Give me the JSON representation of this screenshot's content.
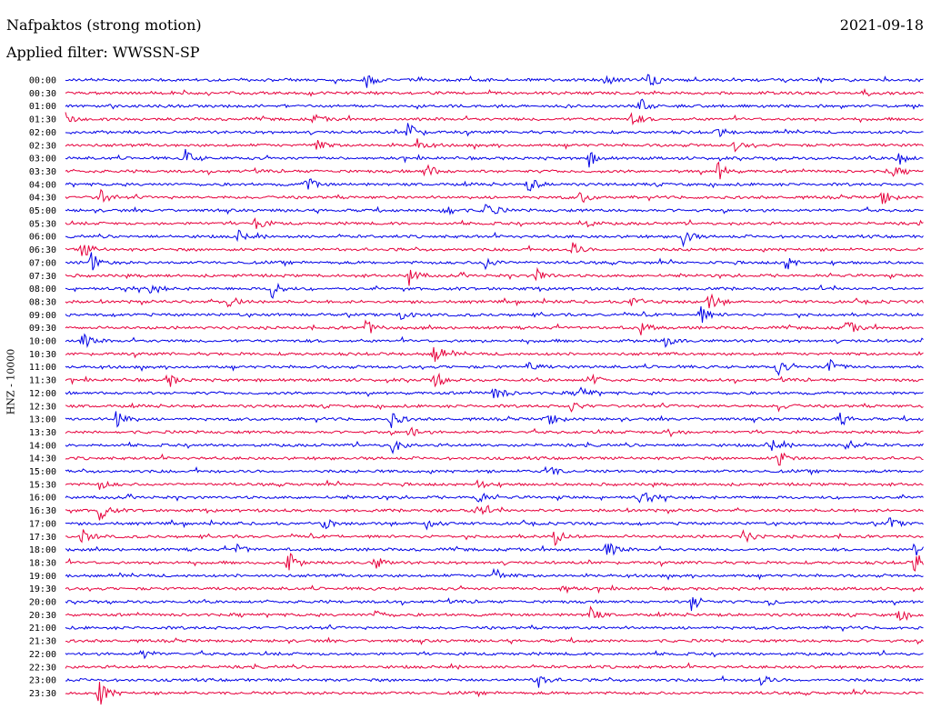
{
  "header": {
    "station": "Nafpaktos (strong motion)",
    "date": "2021-09-18",
    "filter": "Applied filter: WWSSN-SP",
    "channel": "HNZ - 10000"
  },
  "colors": {
    "trace_a": "#0000e6",
    "trace_b": "#e6003c"
  },
  "chart_data": {
    "type": "line",
    "title": "Nafpaktos (strong motion)",
    "subtitle": "Applied filter: WWSSN-SP",
    "ylabel": "HNZ - 10000",
    "xlabel": "",
    "row_duration_minutes": 30,
    "row_labels": [
      "00:00",
      "00:30",
      "01:00",
      "01:30",
      "02:00",
      "02:30",
      "03:00",
      "03:30",
      "04:00",
      "04:30",
      "05:00",
      "05:30",
      "06:00",
      "06:30",
      "07:00",
      "07:30",
      "08:00",
      "08:30",
      "09:00",
      "09:30",
      "10:00",
      "10:30",
      "11:00",
      "11:30",
      "12:00",
      "12:30",
      "13:00",
      "13:30",
      "14:00",
      "14:30",
      "15:00",
      "15:30",
      "16:00",
      "16:30",
      "17:00",
      "17:30",
      "18:00",
      "18:30",
      "19:00",
      "19:30",
      "20:00",
      "20:30",
      "21:00",
      "21:30",
      "22:00",
      "22:30",
      "23:00",
      "23:30"
    ],
    "row_colors": [
      "blue",
      "red"
    ],
    "events": [
      {
        "row": 0,
        "t": 0.35,
        "amp": 0.8
      },
      {
        "row": 0,
        "t": 0.63,
        "amp": 0.6
      },
      {
        "row": 0,
        "t": 0.68,
        "amp": 0.8
      },
      {
        "row": 1,
        "t": 0.93,
        "amp": 0.3
      },
      {
        "row": 2,
        "t": 0.67,
        "amp": 0.7
      },
      {
        "row": 3,
        "t": 0.0,
        "amp": 0.6
      },
      {
        "row": 3,
        "t": 0.29,
        "amp": 0.4
      },
      {
        "row": 3,
        "t": 0.66,
        "amp": 0.7
      },
      {
        "row": 4,
        "t": 0.4,
        "amp": 1.2
      },
      {
        "row": 4,
        "t": 0.76,
        "amp": 0.5
      },
      {
        "row": 5,
        "t": 0.29,
        "amp": 0.8
      },
      {
        "row": 5,
        "t": 0.41,
        "amp": 0.6
      },
      {
        "row": 5,
        "t": 0.78,
        "amp": 0.5
      },
      {
        "row": 6,
        "t": 0.14,
        "amp": 0.9
      },
      {
        "row": 6,
        "t": 0.61,
        "amp": 0.8
      },
      {
        "row": 6,
        "t": 0.97,
        "amp": 0.8
      },
      {
        "row": 7,
        "t": 0.42,
        "amp": 0.9
      },
      {
        "row": 7,
        "t": 0.76,
        "amp": 1.0
      },
      {
        "row": 7,
        "t": 0.96,
        "amp": 0.7
      },
      {
        "row": 8,
        "t": 0.28,
        "amp": 0.9
      },
      {
        "row": 8,
        "t": 0.54,
        "amp": 0.8
      },
      {
        "row": 9,
        "t": 0.04,
        "amp": 0.8
      },
      {
        "row": 9,
        "t": 0.6,
        "amp": 0.6
      },
      {
        "row": 9,
        "t": 0.95,
        "amp": 1.0
      },
      {
        "row": 10,
        "t": 0.44,
        "amp": 1.0
      },
      {
        "row": 10,
        "t": 0.49,
        "amp": 1.1
      },
      {
        "row": 11,
        "t": 0.22,
        "amp": 0.8
      },
      {
        "row": 11,
        "t": 0.6,
        "amp": 0.7
      },
      {
        "row": 12,
        "t": 0.2,
        "amp": 0.7
      },
      {
        "row": 12,
        "t": 0.72,
        "amp": 0.9
      },
      {
        "row": 13,
        "t": 0.02,
        "amp": 1.0
      },
      {
        "row": 13,
        "t": 0.59,
        "amp": 0.8
      },
      {
        "row": 14,
        "t": 0.03,
        "amp": 1.0
      },
      {
        "row": 14,
        "t": 0.49,
        "amp": 0.8
      },
      {
        "row": 14,
        "t": 0.84,
        "amp": 0.8
      },
      {
        "row": 15,
        "t": 0.4,
        "amp": 1.0
      },
      {
        "row": 15,
        "t": 0.55,
        "amp": 0.7
      },
      {
        "row": 16,
        "t": 0.24,
        "amp": 1.0
      },
      {
        "row": 16,
        "t": 0.1,
        "amp": 0.6
      },
      {
        "row": 17,
        "t": 0.19,
        "amp": 0.7
      },
      {
        "row": 17,
        "t": 0.66,
        "amp": 0.7
      },
      {
        "row": 17,
        "t": 0.75,
        "amp": 0.9
      },
      {
        "row": 18,
        "t": 0.39,
        "amp": 0.6
      },
      {
        "row": 18,
        "t": 0.74,
        "amp": 0.9
      },
      {
        "row": 19,
        "t": 0.35,
        "amp": 0.9
      },
      {
        "row": 19,
        "t": 0.67,
        "amp": 0.7
      },
      {
        "row": 19,
        "t": 0.91,
        "amp": 0.8
      },
      {
        "row": 20,
        "t": 0.02,
        "amp": 0.8
      },
      {
        "row": 20,
        "t": 0.7,
        "amp": 0.6
      },
      {
        "row": 21,
        "t": 0.43,
        "amp": 1.0
      },
      {
        "row": 22,
        "t": 0.54,
        "amp": 0.6
      },
      {
        "row": 22,
        "t": 0.83,
        "amp": 0.8
      },
      {
        "row": 22,
        "t": 0.89,
        "amp": 0.9
      },
      {
        "row": 23,
        "t": 0.12,
        "amp": 0.8
      },
      {
        "row": 23,
        "t": 0.43,
        "amp": 1.0
      },
      {
        "row": 23,
        "t": 0.61,
        "amp": 0.8
      },
      {
        "row": 24,
        "t": 0.5,
        "amp": 0.9
      },
      {
        "row": 24,
        "t": 0.6,
        "amp": 0.7
      },
      {
        "row": 25,
        "t": 0.59,
        "amp": 0.5
      },
      {
        "row": 25,
        "t": 0.83,
        "amp": 0.5
      },
      {
        "row": 26,
        "t": 0.06,
        "amp": 1.4
      },
      {
        "row": 26,
        "t": 0.38,
        "amp": 0.9
      },
      {
        "row": 26,
        "t": 0.56,
        "amp": 1.0
      },
      {
        "row": 26,
        "t": 0.9,
        "amp": 0.8
      },
      {
        "row": 27,
        "t": 0.4,
        "amp": 0.6
      },
      {
        "row": 27,
        "t": 0.7,
        "amp": 0.7
      },
      {
        "row": 28,
        "t": 0.38,
        "amp": 0.9
      },
      {
        "row": 28,
        "t": 0.82,
        "amp": 0.8
      },
      {
        "row": 28,
        "t": 0.91,
        "amp": 0.7
      },
      {
        "row": 29,
        "t": 0.83,
        "amp": 1.0
      },
      {
        "row": 30,
        "t": 0.56,
        "amp": 0.9
      },
      {
        "row": 31,
        "t": 0.04,
        "amp": 0.5
      },
      {
        "row": 31,
        "t": 0.48,
        "amp": 0.5
      },
      {
        "row": 32,
        "t": 0.48,
        "amp": 0.7
      },
      {
        "row": 32,
        "t": 0.67,
        "amp": 0.8
      },
      {
        "row": 33,
        "t": 0.04,
        "amp": 1.0
      },
      {
        "row": 33,
        "t": 0.48,
        "amp": 0.8
      },
      {
        "row": 34,
        "t": 0.3,
        "amp": 0.6
      },
      {
        "row": 34,
        "t": 0.42,
        "amp": 0.7
      },
      {
        "row": 34,
        "t": 0.96,
        "amp": 0.6
      },
      {
        "row": 35,
        "t": 0.02,
        "amp": 0.8
      },
      {
        "row": 35,
        "t": 0.57,
        "amp": 0.9
      },
      {
        "row": 35,
        "t": 0.79,
        "amp": 0.7
      },
      {
        "row": 36,
        "t": 0.2,
        "amp": 0.6
      },
      {
        "row": 36,
        "t": 0.63,
        "amp": 1.0
      },
      {
        "row": 36,
        "t": 0.99,
        "amp": 0.9
      },
      {
        "row": 37,
        "t": 0.26,
        "amp": 1.2
      },
      {
        "row": 37,
        "t": 0.36,
        "amp": 0.7
      },
      {
        "row": 37,
        "t": 0.99,
        "amp": 1.1
      },
      {
        "row": 38,
        "t": 0.5,
        "amp": 0.8
      },
      {
        "row": 39,
        "t": 0.58,
        "amp": 0.5
      },
      {
        "row": 40,
        "t": 0.73,
        "amp": 1.0
      },
      {
        "row": 40,
        "t": 0.82,
        "amp": 0.4
      },
      {
        "row": 41,
        "t": 0.36,
        "amp": 0.6
      },
      {
        "row": 41,
        "t": 0.61,
        "amp": 0.9
      },
      {
        "row": 41,
        "t": 0.97,
        "amp": 0.7
      },
      {
        "row": 44,
        "t": 0.09,
        "amp": 0.5
      },
      {
        "row": 46,
        "t": 0.55,
        "amp": 0.9
      },
      {
        "row": 46,
        "t": 0.81,
        "amp": 0.6
      },
      {
        "row": 47,
        "t": 0.04,
        "amp": 1.4
      }
    ]
  }
}
